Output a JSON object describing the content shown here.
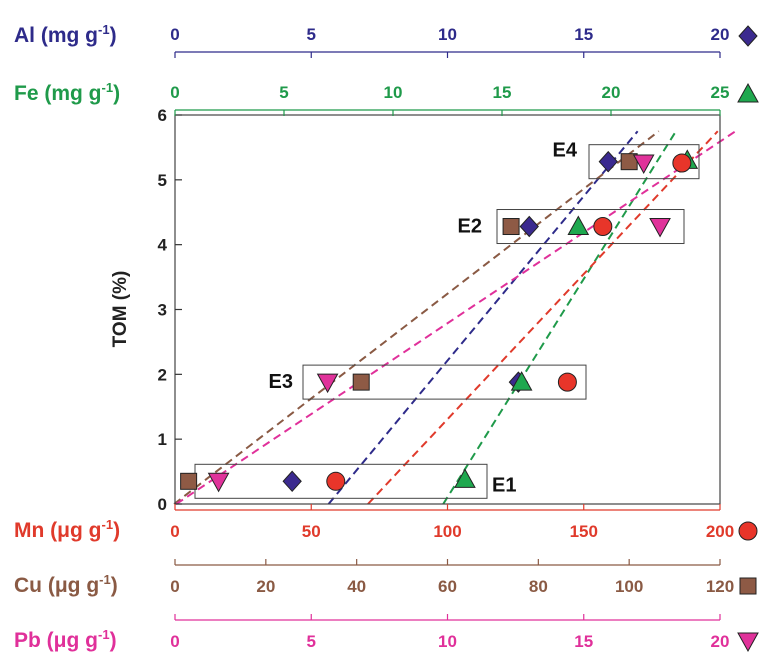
{
  "chart_data": {
    "type": "scatter",
    "ylabel": "TOM (%)",
    "ylim": [
      0,
      6
    ],
    "y_ticks": [
      "0",
      "1",
      "2",
      "3",
      "4",
      "5",
      "6"
    ],
    "axes": [
      {
        "key": "al",
        "label_main": "Al (mg g",
        "label_sup": "-1",
        "label_end": ")",
        "position": "top",
        "color": "#2e2b8a",
        "range": [
          0,
          20
        ],
        "ticks": [
          0,
          5,
          10,
          15,
          20
        ],
        "marker": "diamond",
        "marker_color": "#3b2a8f"
      },
      {
        "key": "fe",
        "label_main": "Fe (mg g",
        "label_sup": "-1",
        "label_end": ")",
        "position": "top",
        "color": "#1f9a4a",
        "range": [
          0,
          25
        ],
        "ticks": [
          0,
          5,
          10,
          15,
          20,
          25
        ],
        "marker": "triangle-up",
        "marker_color": "#1fa84f"
      },
      {
        "key": "mn",
        "label_main": "Mn (μg g",
        "label_sup": "-1",
        "label_end": ")",
        "position": "bottom",
        "color": "#e03a2b",
        "range": [
          0,
          200
        ],
        "ticks": [
          0,
          50,
          100,
          150,
          200
        ],
        "marker": "circle",
        "marker_color": "#e8352a"
      },
      {
        "key": "cu",
        "label_main": "Cu (μg g",
        "label_sup": "-1",
        "label_end": ")",
        "position": "bottom",
        "color": "#8a5a44",
        "range": [
          0,
          120
        ],
        "ticks": [
          0,
          20,
          40,
          60,
          80,
          100,
          120
        ],
        "marker": "square",
        "marker_color": "#8e5a45"
      },
      {
        "key": "pb",
        "label_main": "Pb (μg g",
        "label_sup": "-1",
        "label_end": ")",
        "position": "bottom",
        "color": "#e0309a",
        "range": [
          0,
          20
        ],
        "ticks": [
          0,
          5,
          10,
          15,
          20
        ],
        "marker": "triangle-down",
        "marker_color": "#e0329a"
      }
    ],
    "series": [
      {
        "axis": "al",
        "points": [
          {
            "x": 4.3,
            "y": 0.35
          },
          {
            "x": 12.6,
            "y": 1.88
          },
          {
            "x": 13.0,
            "y": 4.28
          },
          {
            "x": 15.9,
            "y": 5.28
          }
        ]
      },
      {
        "axis": "fe",
        "points": [
          {
            "x": 13.3,
            "y": 0.38
          },
          {
            "x": 15.9,
            "y": 1.88
          },
          {
            "x": 18.5,
            "y": 4.28
          },
          {
            "x": 23.5,
            "y": 5.3
          }
        ]
      },
      {
        "axis": "mn",
        "points": [
          {
            "x": 59,
            "y": 0.35
          },
          {
            "x": 144,
            "y": 1.88
          },
          {
            "x": 157,
            "y": 4.28
          },
          {
            "x": 186,
            "y": 5.26
          }
        ]
      },
      {
        "axis": "cu",
        "points": [
          {
            "x": 3.0,
            "y": 0.35
          },
          {
            "x": 41,
            "y": 1.88
          },
          {
            "x": 74,
            "y": 4.28
          },
          {
            "x": 100,
            "y": 5.28
          }
        ]
      },
      {
        "axis": "pb",
        "points": [
          {
            "x": 1.6,
            "y": 0.35
          },
          {
            "x": 5.6,
            "y": 1.88
          },
          {
            "x": 17.8,
            "y": 4.28
          },
          {
            "x": 17.2,
            "y": 5.26
          }
        ]
      }
    ],
    "groups": [
      {
        "label": "E1",
        "y": 0.35
      },
      {
        "label": "E3",
        "y": 1.88
      },
      {
        "label": "E2",
        "y": 4.28
      },
      {
        "label": "E4",
        "y": 5.28
      }
    ]
  }
}
